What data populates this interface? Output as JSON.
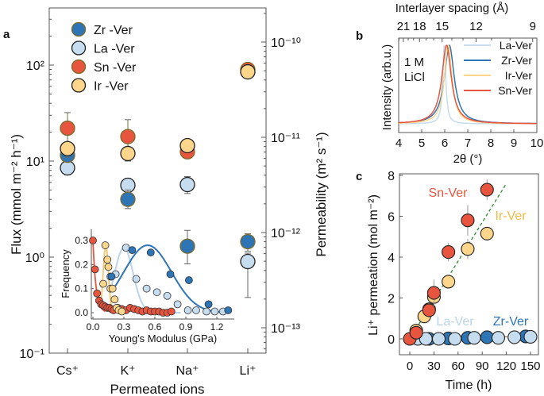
{
  "panel_labels": {
    "a": "a",
    "b": "b",
    "c": "c"
  },
  "colors": {
    "Zr-Ver": "#2e75b6",
    "La-Ver": "#c6dcef",
    "Sn-Ver": "#e8553e",
    "Ir-Ver": "#fdd68b",
    "fit_line": "#2e8b2e",
    "baseline_line": "#a0703a"
  },
  "chart_data": [
    {
      "id": "a",
      "type": "scatter",
      "xlabel": "Permeated ions",
      "ylabel": "Flux (mmol m⁻² h⁻¹)",
      "y2label": "Permeability (m² s⁻¹)",
      "yscale": "log",
      "ylim": [
        0.1,
        350
      ],
      "y_ticks": [
        "10⁻¹",
        "10⁰",
        "10¹",
        "10²"
      ],
      "y2_ticks": [
        "10⁻¹³",
        "10⁻¹²",
        "10⁻¹¹",
        "10⁻¹⁰"
      ],
      "y2lim": [
        5.4e-14,
        1.7e-10
      ],
      "categories": [
        "Cs⁺",
        "K⁺",
        "Na⁺",
        "Li⁺"
      ],
      "legend": "top-left",
      "series": [
        {
          "name": "Zr -Ver",
          "key": "Zr-Ver",
          "values": [
            11.5,
            4.0,
            1.3,
            1.45
          ],
          "err_low": [
            10.5,
            3.2,
            0.85,
            1.15
          ],
          "err_high": [
            13,
            5,
            1.9,
            1.75
          ]
        },
        {
          "name": "La -Ver",
          "key": "La-Ver",
          "values": [
            8.5,
            5.6,
            5.7,
            0.9
          ],
          "err_low": [
            7.2,
            4.9,
            4.6,
            0.38
          ],
          "err_high": [
            10,
            6.6,
            6.9,
            1.1
          ]
        },
        {
          "name": "Sn -Ver",
          "key": "Sn-Ver",
          "values": [
            22,
            18,
            12.5,
            90
          ],
          "err_low": [
            11,
            10,
            11,
            85
          ],
          "err_high": [
            32,
            27,
            14,
            95
          ]
        },
        {
          "name": "Ir -Ver",
          "key": "Ir-Ver",
          "values": [
            13.5,
            12,
            14.5,
            85
          ],
          "err_low": [
            12.5,
            10,
            12.5,
            75
          ],
          "err_high": [
            14.5,
            14,
            15.5,
            93
          ]
        }
      ],
      "inset": {
        "type": "scatter",
        "xlabel": "Young's Modulus (GPa)",
        "ylabel": "Frequency",
        "xlim": [
          -0.01,
          1.4
        ],
        "ylim": [
          -0.02,
          0.34
        ],
        "x_ticks": [
          "0.0",
          "0.3",
          "0.6",
          "0.9",
          "1.2"
        ],
        "y_ticks": [
          "0.0",
          "0.1",
          "0.2",
          "0.3"
        ],
        "series": [
          {
            "key": "Sn-Ver",
            "x": [
              0.0,
              0.02,
              0.04,
              0.06,
              0.08,
              0.1,
              0.12,
              0.14,
              0.16,
              0.18,
              0.2,
              0.24,
              0.28,
              0.32,
              0.36,
              0.4,
              0.44,
              0.48,
              0.52,
              0.56,
              0.6,
              0.64,
              0.68,
              0.72,
              0.76
            ],
            "y": [
              0.3,
              0.18,
              0.08,
              0.05,
              0.035,
              0.03,
              0.025,
              0.02,
              0.02,
              0.015,
              0.01,
              0.02,
              0.015,
              0.01,
              0.02,
              0.015,
              0.01,
              0.005,
              0.01,
              0.005,
              0.005,
              0.005,
              0.0,
              0.0,
              0.005
            ]
          },
          {
            "key": "Ir-Ver",
            "x": [
              0.1,
              0.12,
              0.14,
              0.15,
              0.17,
              0.19,
              0.21,
              0.23,
              0.25,
              0.28
            ],
            "y": [
              0.12,
              0.28,
              0.22,
              0.19,
              0.1,
              0.1,
              0.055,
              0.02,
              0.01,
              0.005
            ]
          },
          {
            "key": "La-Ver",
            "x": [
              0.17,
              0.22,
              0.32,
              0.42,
              0.52,
              0.62,
              0.72,
              0.82,
              0.92,
              1.0,
              1.1,
              1.18,
              1.26
            ],
            "y": [
              0.15,
              0.16,
              0.27,
              0.14,
              0.1,
              0.085,
              0.07,
              0.035,
              0.01,
              0.01,
              0.005,
              0.005,
              0.005
            ]
          },
          {
            "key": "Zr-Ver",
            "x": [
              0.18,
              0.38,
              0.56,
              0.75,
              0.93,
              1.12,
              1.31
            ],
            "y": [
              0.15,
              0.26,
              0.25,
              0.16,
              0.135,
              0.035,
              0.01
            ]
          }
        ]
      }
    },
    {
      "id": "b",
      "type": "line",
      "xlabel": "2θ (°)",
      "ylabel": "Intensity (arb.u.)",
      "x2label": "Interlayer spacing (Å)",
      "xlim": [
        4,
        10
      ],
      "x_ticks": [
        "4",
        "5",
        "6",
        "7",
        "8",
        "9",
        "10"
      ],
      "x2_ticks": [
        "21",
        "18",
        "15",
        "12",
        "9"
      ],
      "annotation": [
        "1 M",
        "LiCl"
      ],
      "legend": "top-right",
      "series": [
        {
          "name": "La-Ver",
          "key": "La-Ver",
          "peak_2theta": 5.98
        },
        {
          "name": "Zr-Ver",
          "key": "Zr-Ver",
          "peak_2theta": 6.2
        },
        {
          "name": "Ir-Ver",
          "key": "Ir-Ver",
          "peak_2theta": 6.15
        },
        {
          "name": "Sn-Ver",
          "key": "Sn-Ver",
          "peak_2theta": 6.08
        }
      ]
    },
    {
      "id": "c",
      "type": "scatter",
      "xlabel": "Time (h)",
      "ylabel": "Li⁺ permeation (mol m⁻²)",
      "xlim": [
        -13,
        160
      ],
      "ylim": [
        -0.8,
        8
      ],
      "x_ticks": [
        "0",
        "30",
        "60",
        "90",
        "120",
        "150"
      ],
      "y_ticks": [
        "0",
        "2",
        "4",
        "6",
        "8"
      ],
      "series": [
        {
          "name": "Sn-Ver",
          "key": "Sn-Ver",
          "x": [
            0,
            8,
            24,
            30,
            48,
            72,
            96
          ],
          "y": [
            0,
            0.3,
            1.4,
            2.25,
            4.25,
            5.8,
            7.3
          ],
          "err": [
            0,
            0.1,
            0.15,
            0.65,
            0.45,
            0.75,
            0.5
          ]
        },
        {
          "name": "Ir-Ver",
          "key": "Ir-Ver",
          "x": [
            8,
            18,
            24,
            30,
            48,
            72,
            96
          ],
          "y": [
            0.4,
            1.1,
            1.45,
            2.05,
            2.8,
            4.4,
            5.15
          ],
          "err": [
            0.1,
            0.1,
            0.1,
            0.2,
            0.3,
            0.5,
            0.3
          ]
        },
        {
          "name": "Zr-Ver",
          "key": "Zr-Ver",
          "x": [
            24,
            48,
            72,
            96,
            144
          ],
          "y": [
            0.0,
            0.02,
            0.05,
            0.08,
            0.12
          ],
          "err": [
            0,
            0,
            0,
            0,
            0
          ]
        },
        {
          "name": "La-Ver",
          "key": "La-Ver",
          "x": [
            10,
            20,
            36,
            56,
            80,
            110,
            130,
            150
          ],
          "y": [
            0.0,
            0.0,
            0.0,
            0.0,
            0.05,
            0.05,
            0.08,
            0.1
          ],
          "err": [
            0,
            0,
            0,
            0,
            0,
            0,
            0,
            0
          ]
        }
      ],
      "trend_lines": [
        {
          "key": "fit_line",
          "x": [
            0,
            120
          ],
          "y": [
            0,
            7.6
          ]
        },
        {
          "key": "baseline_line",
          "x": [
            0,
            150
          ],
          "y": [
            0.02,
            0.12
          ]
        }
      ]
    }
  ]
}
